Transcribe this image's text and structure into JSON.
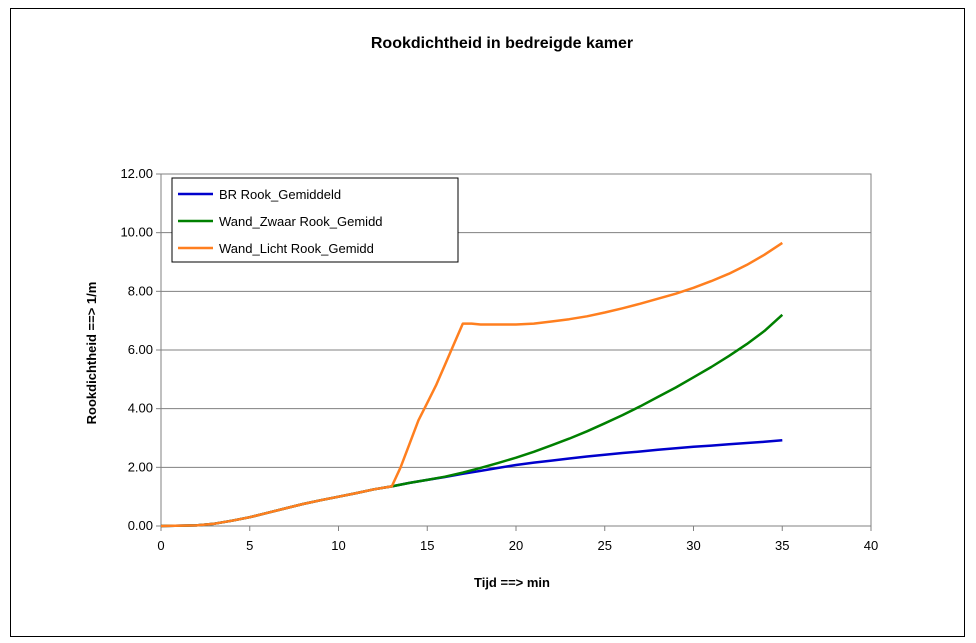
{
  "chart_data": {
    "type": "line",
    "title": "Rookdichtheid in bedreigde kamer",
    "xlabel": "Tijd  ==> min",
    "ylabel": "Rookdichtheid  ==> 1/m",
    "xlim": [
      0,
      40
    ],
    "ylim": [
      0,
      12
    ],
    "x_ticks": [
      "0",
      "5",
      "10",
      "15",
      "20",
      "25",
      "30",
      "35",
      "40"
    ],
    "y_ticks": [
      "0.00",
      "2.00",
      "4.00",
      "6.00",
      "8.00",
      "10.00",
      "12.00"
    ],
    "grid": "horizontal",
    "legend_position": "top-left",
    "series": [
      {
        "name": "BR Rook_Gemiddeld",
        "color": "#0000CC",
        "points": [
          [
            0,
            0
          ],
          [
            2,
            0.02
          ],
          [
            3,
            0.08
          ],
          [
            4,
            0.18
          ],
          [
            5,
            0.3
          ],
          [
            6,
            0.45
          ],
          [
            7,
            0.6
          ],
          [
            8,
            0.75
          ],
          [
            9,
            0.88
          ],
          [
            10,
            1.0
          ],
          [
            11,
            1.12
          ],
          [
            12,
            1.25
          ],
          [
            13,
            1.35
          ],
          [
            14,
            1.47
          ],
          [
            15,
            1.57
          ],
          [
            16,
            1.67
          ],
          [
            17,
            1.78
          ],
          [
            18,
            1.88
          ],
          [
            19,
            1.98
          ],
          [
            20,
            2.08
          ],
          [
            21,
            2.16
          ],
          [
            22,
            2.23
          ],
          [
            23,
            2.3
          ],
          [
            24,
            2.37
          ],
          [
            25,
            2.43
          ],
          [
            26,
            2.49
          ],
          [
            27,
            2.54
          ],
          [
            28,
            2.6
          ],
          [
            29,
            2.65
          ],
          [
            30,
            2.7
          ],
          [
            31,
            2.74
          ],
          [
            32,
            2.79
          ],
          [
            33,
            2.83
          ],
          [
            34,
            2.87
          ],
          [
            35,
            2.92
          ]
        ]
      },
      {
        "name": "Wand_Zwaar Rook_Gemidd",
        "color": "#008000",
        "points": [
          [
            0,
            0
          ],
          [
            2,
            0.02
          ],
          [
            3,
            0.08
          ],
          [
            4,
            0.18
          ],
          [
            5,
            0.3
          ],
          [
            6,
            0.45
          ],
          [
            7,
            0.6
          ],
          [
            8,
            0.75
          ],
          [
            9,
            0.88
          ],
          [
            10,
            1.0
          ],
          [
            11,
            1.12
          ],
          [
            12,
            1.25
          ],
          [
            13,
            1.35
          ],
          [
            14,
            1.47
          ],
          [
            15,
            1.57
          ],
          [
            16,
            1.68
          ],
          [
            17,
            1.82
          ],
          [
            18,
            1.98
          ],
          [
            19,
            2.15
          ],
          [
            20,
            2.33
          ],
          [
            21,
            2.53
          ],
          [
            22,
            2.75
          ],
          [
            23,
            2.98
          ],
          [
            24,
            3.23
          ],
          [
            25,
            3.5
          ],
          [
            26,
            3.78
          ],
          [
            27,
            4.08
          ],
          [
            28,
            4.4
          ],
          [
            29,
            4.72
          ],
          [
            30,
            5.07
          ],
          [
            31,
            5.42
          ],
          [
            32,
            5.8
          ],
          [
            33,
            6.2
          ],
          [
            34,
            6.65
          ],
          [
            35,
            7.2
          ]
        ]
      },
      {
        "name": "Wand_Licht Rook_Gemidd",
        "color": "#FF7F1F",
        "points": [
          [
            0,
            0
          ],
          [
            2,
            0.02
          ],
          [
            3,
            0.08
          ],
          [
            4,
            0.18
          ],
          [
            5,
            0.3
          ],
          [
            6,
            0.45
          ],
          [
            7,
            0.6
          ],
          [
            8,
            0.75
          ],
          [
            9,
            0.88
          ],
          [
            10,
            1.0
          ],
          [
            11,
            1.12
          ],
          [
            12,
            1.25
          ],
          [
            13,
            1.35
          ],
          [
            13.5,
            2.0
          ],
          [
            14,
            2.8
          ],
          [
            14.5,
            3.6
          ],
          [
            15,
            4.2
          ],
          [
            15.5,
            4.8
          ],
          [
            16,
            5.5
          ],
          [
            16.5,
            6.2
          ],
          [
            17,
            6.9
          ],
          [
            17.5,
            6.9
          ],
          [
            18,
            6.87
          ],
          [
            19,
            6.87
          ],
          [
            20,
            6.87
          ],
          [
            21,
            6.9
          ],
          [
            22,
            6.97
          ],
          [
            23,
            7.05
          ],
          [
            24,
            7.15
          ],
          [
            25,
            7.28
          ],
          [
            26,
            7.42
          ],
          [
            27,
            7.58
          ],
          [
            28,
            7.75
          ],
          [
            29,
            7.92
          ],
          [
            30,
            8.12
          ],
          [
            31,
            8.35
          ],
          [
            32,
            8.6
          ],
          [
            33,
            8.9
          ],
          [
            34,
            9.25
          ],
          [
            35,
            9.65
          ]
        ]
      }
    ]
  }
}
